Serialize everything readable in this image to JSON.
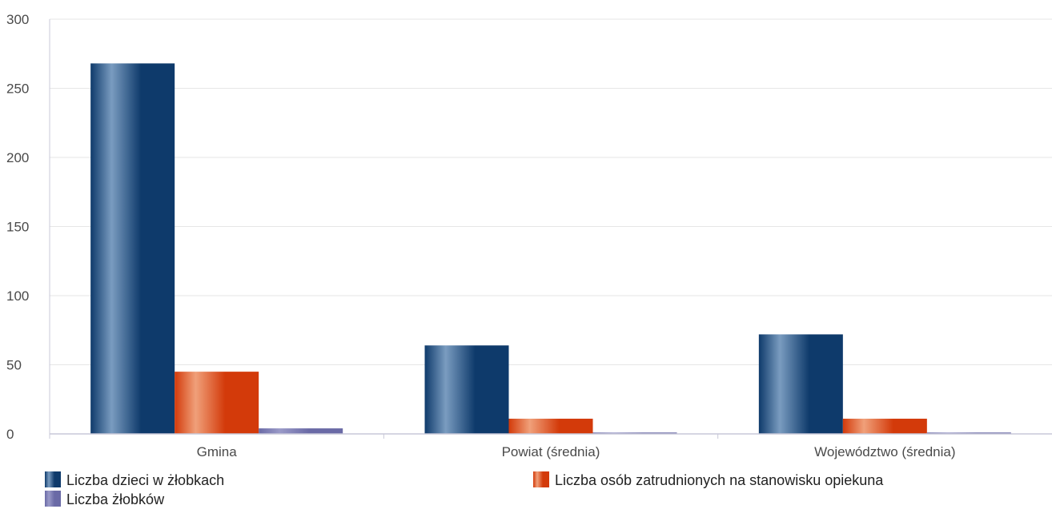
{
  "chart_data": {
    "type": "bar",
    "categories": [
      "Gmina",
      "Powiat (średnia)",
      "Województwo (średnia)"
    ],
    "series": [
      {
        "name": "Liczba dzieci w żłobkach",
        "values": [
          268,
          64,
          72
        ],
        "color": "#0e3a6b",
        "highlight": "#7a9cc0"
      },
      {
        "name": "Liczba osób zatrudnionych na stanowisku opiekuna",
        "values": [
          45,
          11,
          11
        ],
        "color": "#d33a0a",
        "highlight": "#f0a07a"
      },
      {
        "name": "Liczba żłobków",
        "values": [
          4,
          1,
          1
        ],
        "color": "#6a6aa6",
        "highlight": "#9a9ac8"
      }
    ],
    "yticks": [
      0,
      50,
      100,
      150,
      200,
      250,
      300
    ],
    "ylim": [
      0,
      300
    ],
    "grid": true,
    "legend_position": "bottom"
  }
}
